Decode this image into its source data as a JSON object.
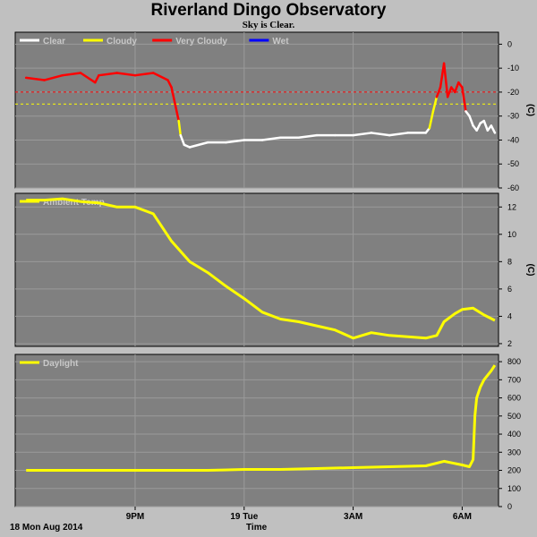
{
  "title": "Riverland Dingo Observatory",
  "subtitle": "Sky is Clear.",
  "date_label": "18 Mon Aug 2014",
  "x_axis_title": "Time",
  "colors": {
    "background": "#c0c0c0",
    "panel": "#808080",
    "grid": "#9a9a9a",
    "clear": "#ffffff",
    "cloudy": "#ffff00",
    "very_cloudy": "#ff0000",
    "wet": "#0000ff"
  },
  "chart_data": [
    {
      "type": "line",
      "name": "sky-temperature",
      "legend": [
        {
          "label": "Clear",
          "color": "#ffffff"
        },
        {
          "label": "Cloudy",
          "color": "#ffff00"
        },
        {
          "label": "Very Cloudy",
          "color": "#ff0000"
        },
        {
          "label": "Wet",
          "color": "#0000ff"
        }
      ],
      "ylabel": "(C)",
      "ylim": [
        -60,
        5
      ],
      "yticks": [
        0,
        -10,
        -20,
        -30,
        -40,
        -50,
        -60
      ],
      "thresholds": [
        {
          "value": -20,
          "color": "#ff0000"
        },
        {
          "value": -25,
          "color": "#ffff00"
        }
      ],
      "x_hours": [
        18.0,
        18.5,
        19.0,
        19.5,
        19.9,
        20.0,
        20.5,
        21.0,
        21.5,
        21.9,
        22.0,
        22.2,
        22.25,
        22.35,
        22.5,
        23.0,
        23.5,
        0.0,
        0.5,
        1.0,
        1.5,
        2.0,
        2.5,
        3.0,
        3.5,
        4.0,
        4.5,
        5.0,
        5.1,
        5.2,
        5.3,
        5.4,
        5.5,
        5.6,
        5.7,
        5.8,
        5.9,
        6.0,
        6.1,
        6.2,
        6.3,
        6.4,
        6.5,
        6.6,
        6.7,
        6.8,
        6.9
      ],
      "y": [
        -14,
        -15,
        -13,
        -12,
        -16,
        -13,
        -12,
        -13,
        -12,
        -15,
        -18,
        -32,
        -38,
        -42,
        -43,
        -41,
        -41,
        -40,
        -40,
        -39,
        -39,
        -38,
        -38,
        -38,
        -37,
        -38,
        -37,
        -37,
        -35,
        -28,
        -22,
        -18,
        -8,
        -22,
        -18,
        -20,
        -16,
        -18,
        -28,
        -30,
        -34,
        -36,
        -33,
        -32,
        -36,
        -34,
        -37
      ],
      "conditions": [
        "very_cloudy",
        "very_cloudy",
        "very_cloudy",
        "very_cloudy",
        "very_cloudy",
        "very_cloudy",
        "very_cloudy",
        "very_cloudy",
        "very_cloudy",
        "very_cloudy",
        "very_cloudy",
        "very_cloudy",
        "cloudy",
        "clear",
        "clear",
        "clear",
        "clear",
        "clear",
        "clear",
        "clear",
        "clear",
        "clear",
        "clear",
        "clear",
        "clear",
        "clear",
        "clear",
        "clear",
        "clear",
        "cloudy",
        "cloudy",
        "very_cloudy",
        "very_cloudy",
        "very_cloudy",
        "very_cloudy",
        "very_cloudy",
        "very_cloudy",
        "very_cloudy",
        "very_cloudy",
        "clear",
        "clear",
        "clear",
        "clear",
        "clear",
        "clear",
        "clear",
        "clear"
      ]
    },
    {
      "type": "line",
      "name": "ambient-temperature",
      "legend": [
        {
          "label": "Ambient Temp",
          "color": "#ffff00"
        }
      ],
      "ylabel": "(C)",
      "ylim": [
        1.8,
        13
      ],
      "yticks": [
        12,
        10,
        8,
        6,
        4,
        2
      ],
      "x_hours": [
        18.0,
        18.5,
        19.0,
        19.5,
        20.0,
        20.5,
        21.0,
        21.5,
        22.0,
        22.5,
        23.0,
        23.5,
        0.0,
        0.5,
        1.0,
        1.5,
        2.0,
        2.5,
        3.0,
        3.5,
        4.0,
        4.5,
        5.0,
        5.3,
        5.5,
        5.8,
        6.0,
        6.3,
        6.6,
        6.9
      ],
      "y": [
        12.5,
        12.5,
        12.6,
        12.4,
        12.3,
        12.0,
        12.0,
        11.5,
        9.5,
        8.0,
        7.2,
        6.2,
        5.3,
        4.3,
        3.8,
        3.6,
        3.3,
        3.0,
        2.4,
        2.8,
        2.6,
        2.5,
        2.4,
        2.6,
        3.6,
        4.2,
        4.5,
        4.6,
        4.1,
        3.7
      ]
    },
    {
      "type": "line",
      "name": "daylight",
      "legend": [
        {
          "label": "Daylight",
          "color": "#ffff00"
        }
      ],
      "ylabel": "",
      "ylim": [
        0,
        840
      ],
      "yticks": [
        800,
        700,
        600,
        500,
        400,
        300,
        200,
        100,
        0
      ],
      "x_hours": [
        18.0,
        19.0,
        20.0,
        21.0,
        22.0,
        23.0,
        0.0,
        1.0,
        2.0,
        3.0,
        4.0,
        5.0,
        5.5,
        6.0,
        6.2,
        6.3,
        6.35,
        6.4,
        6.5,
        6.6,
        6.8,
        6.9
      ],
      "y": [
        200,
        200,
        200,
        200,
        200,
        200,
        205,
        205,
        210,
        215,
        220,
        225,
        250,
        230,
        220,
        260,
        500,
        600,
        660,
        700,
        750,
        780
      ]
    }
  ],
  "x_axis": {
    "start_hour": 17.7,
    "end_hour": 31.0,
    "ticks": [
      {
        "hour": 21,
        "label": "9PM"
      },
      {
        "hour": 24,
        "label": "19 Tue"
      },
      {
        "hour": 27,
        "label": "3AM"
      },
      {
        "hour": 30,
        "label": "6AM"
      }
    ]
  }
}
